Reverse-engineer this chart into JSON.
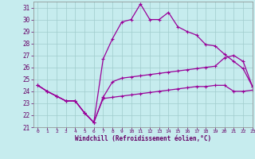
{
  "xlabel": "Windchill (Refroidissement éolien,°C)",
  "xlim": [
    -0.5,
    23
  ],
  "ylim": [
    21,
    31.5
  ],
  "yticks": [
    21,
    22,
    23,
    24,
    25,
    26,
    27,
    28,
    29,
    30,
    31
  ],
  "xticks": [
    0,
    1,
    2,
    3,
    4,
    5,
    6,
    7,
    8,
    9,
    10,
    11,
    12,
    13,
    14,
    15,
    16,
    17,
    18,
    19,
    20,
    21,
    22,
    23
  ],
  "background_color": "#c6ecee",
  "line_color": "#990099",
  "grid_color": "#a0cccc",
  "line1_x": [
    0,
    1,
    2,
    3,
    4,
    5,
    6,
    7,
    8,
    9,
    10,
    11,
    12,
    13,
    14,
    15,
    16,
    17,
    18,
    19,
    20,
    21,
    22,
    23
  ],
  "line1_y": [
    24.5,
    24.0,
    23.6,
    23.2,
    23.2,
    22.2,
    21.4,
    23.4,
    23.5,
    23.6,
    23.7,
    23.8,
    23.9,
    24.0,
    24.1,
    24.2,
    24.3,
    24.4,
    24.4,
    24.5,
    24.5,
    24.0,
    24.0,
    24.1
  ],
  "line2_x": [
    0,
    1,
    2,
    3,
    4,
    5,
    6,
    7,
    8,
    9,
    10,
    11,
    12,
    13,
    14,
    15,
    16,
    17,
    18,
    19,
    20,
    21,
    22,
    23
  ],
  "line2_y": [
    24.5,
    24.0,
    23.6,
    23.2,
    23.2,
    22.2,
    21.4,
    26.7,
    28.4,
    29.8,
    30.0,
    31.3,
    30.0,
    30.0,
    30.6,
    29.4,
    29.0,
    28.7,
    27.9,
    27.8,
    27.1,
    26.5,
    25.9,
    24.4
  ],
  "line3_x": [
    0,
    1,
    2,
    3,
    4,
    5,
    6,
    7,
    8,
    9,
    10,
    11,
    12,
    13,
    14,
    15,
    16,
    17,
    18,
    19,
    20,
    21,
    22,
    23
  ],
  "line3_y": [
    24.5,
    24.0,
    23.6,
    23.2,
    23.2,
    22.2,
    21.4,
    23.5,
    24.8,
    25.1,
    25.2,
    25.3,
    25.4,
    25.5,
    25.6,
    25.7,
    25.8,
    25.9,
    26.0,
    26.1,
    26.8,
    27.0,
    26.5,
    24.4
  ],
  "marker_size": 2.5,
  "linewidth": 0.9
}
